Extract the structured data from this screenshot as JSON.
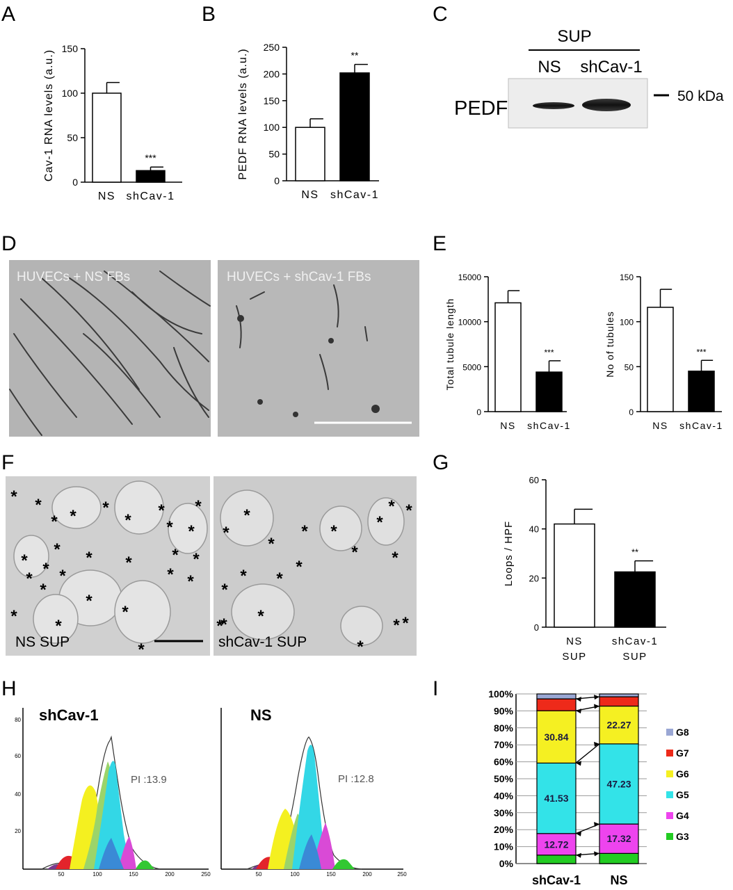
{
  "panel_letters": [
    "A",
    "B",
    "C",
    "D",
    "E",
    "F",
    "G",
    "H",
    "I"
  ],
  "chart_data": [
    {
      "panel": "A",
      "type": "bar",
      "categories": [
        "NS",
        "shCav-1"
      ],
      "values": [
        100,
        13
      ],
      "errors": [
        12,
        4
      ],
      "colors": [
        "#ffffff",
        "#000000"
      ],
      "annotations": [
        "",
        "***"
      ],
      "xlabel": "",
      "ylabel": "Cav-1 RNA levels (a.u.)",
      "ylim": [
        0,
        150
      ],
      "yticks": [
        0,
        50,
        100,
        150
      ]
    },
    {
      "panel": "B",
      "type": "bar",
      "categories": [
        "NS",
        "shCav-1"
      ],
      "values": [
        100,
        202
      ],
      "errors": [
        16,
        16
      ],
      "colors": [
        "#ffffff",
        "#000000"
      ],
      "annotations": [
        "",
        "**"
      ],
      "xlabel": "",
      "ylabel": "PEDF RNA levels (a.u.)",
      "ylim": [
        0,
        250
      ],
      "yticks": [
        0,
        50,
        100,
        150,
        200,
        250
      ]
    },
    {
      "panel": "E1",
      "type": "bar",
      "categories": [
        "NS",
        "shCav-1"
      ],
      "values": [
        12100,
        4400
      ],
      "errors": [
        1350,
        1250
      ],
      "colors": [
        "#ffffff",
        "#000000"
      ],
      "annotations": [
        "",
        "***"
      ],
      "xlabel": "",
      "ylabel": "Total tubule length",
      "ylim": [
        0,
        15000
      ],
      "yticks": [
        0,
        5000,
        10000,
        15000
      ]
    },
    {
      "panel": "E2",
      "type": "bar",
      "categories": [
        "NS",
        "shCav-1"
      ],
      "values": [
        116,
        45
      ],
      "errors": [
        20,
        12
      ],
      "colors": [
        "#ffffff",
        "#000000"
      ],
      "annotations": [
        "",
        "***"
      ],
      "xlabel": "",
      "ylabel": "No of tubules",
      "ylim": [
        0,
        150
      ],
      "yticks": [
        0,
        50,
        100,
        150
      ]
    },
    {
      "panel": "G",
      "type": "bar",
      "categories": [
        [
          "NS",
          "SUP"
        ],
        [
          "shCav-1",
          "SUP"
        ]
      ],
      "values": [
        42,
        22.5
      ],
      "errors": [
        6,
        4.5
      ],
      "colors": [
        "#ffffff",
        "#000000"
      ],
      "annotations": [
        "",
        "**"
      ],
      "xlabel": "",
      "ylabel": "Loops / HPF",
      "ylim": [
        0,
        60
      ],
      "yticks": [
        0,
        20,
        40,
        60
      ]
    },
    {
      "panel": "I",
      "type": "bar",
      "stacked": true,
      "percent": true,
      "categories": [
        "shCav-1",
        "NS"
      ],
      "series": [
        {
          "name": "G3",
          "color": "#22cc22",
          "values": [
            5,
            6
          ]
        },
        {
          "name": "G4",
          "color": "#ee44ee",
          "values": [
            12.72,
            17.32
          ]
        },
        {
          "name": "G5",
          "color": "#33e3e8",
          "values": [
            41.53,
            47.23
          ]
        },
        {
          "name": "G6",
          "color": "#f5f022",
          "values": [
            30.84,
            22.27
          ]
        },
        {
          "name": "G7",
          "color": "#ee2a1a",
          "values": [
            7,
            5.5
          ]
        },
        {
          "name": "G8",
          "color": "#9aa7d4",
          "values": [
            2.91,
            1.68
          ]
        }
      ],
      "segment_labels": {
        "G4": [
          "12.72",
          "17.32"
        ],
        "G5": [
          "41.53",
          "47.23"
        ],
        "G6": [
          "30.84",
          "22.27"
        ]
      },
      "ylim": [
        0,
        100
      ],
      "yticks": [
        "0%",
        "10%",
        "20%",
        "30%",
        "40%",
        "50%",
        "60%",
        "70%",
        "80%",
        "90%",
        "100%"
      ],
      "legend_position": "right"
    }
  ],
  "panel_c": {
    "header": "SUP",
    "lanes": [
      "NS",
      "shCav-1"
    ],
    "band_label": "PEDF",
    "marker": "50 kDa"
  },
  "panel_d": {
    "captions": [
      "HUVECs + NS FBs",
      "HUVECs + shCav-1 FBs"
    ]
  },
  "panel_f": {
    "captions": [
      "NS SUP",
      "shCav-1 SUP"
    ],
    "marker": "*"
  },
  "panel_h": {
    "plots": [
      {
        "label": "shCav-1",
        "pi": "PI :13.9"
      },
      {
        "label": "NS",
        "pi": "PI :12.8"
      }
    ],
    "x_ticks": [
      "50",
      "100",
      "150",
      "200",
      "250"
    ],
    "y_ticks": [
      "20",
      "40",
      "60",
      "80"
    ]
  }
}
